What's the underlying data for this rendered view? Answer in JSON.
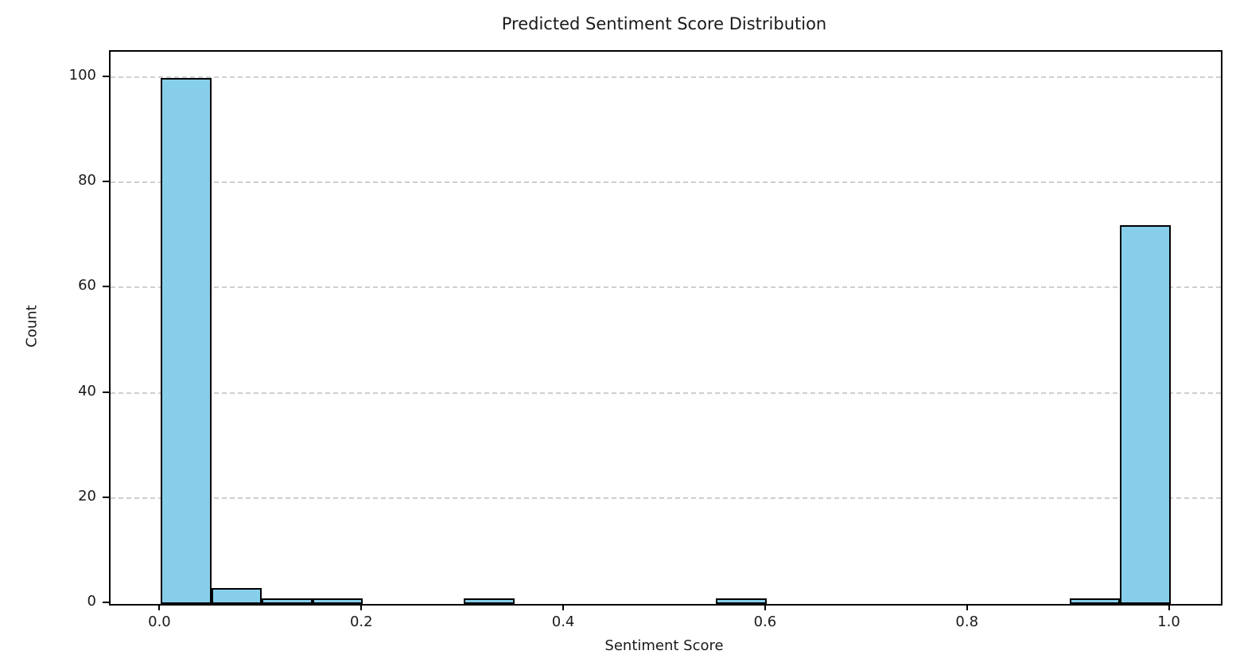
{
  "chart_data": {
    "type": "bar",
    "subtype": "histogram",
    "title": "Predicted Sentiment Score Distribution",
    "xlabel": "Sentiment Score",
    "ylabel": "Count",
    "bin_edges": [
      0.0,
      0.05,
      0.1,
      0.15,
      0.2,
      0.25,
      0.3,
      0.35,
      0.4,
      0.45,
      0.5,
      0.55,
      0.6,
      0.65,
      0.7,
      0.75,
      0.8,
      0.85,
      0.9,
      0.95,
      1.0
    ],
    "counts": [
      100,
      3,
      1,
      1,
      0,
      0,
      1,
      0,
      0,
      0,
      0,
      1,
      0,
      0,
      0,
      0,
      0,
      0,
      1,
      72
    ],
    "x_ticks": [
      {
        "value": 0.0,
        "label": "0.0"
      },
      {
        "value": 0.2,
        "label": "0.2"
      },
      {
        "value": 0.4,
        "label": "0.4"
      },
      {
        "value": 0.6,
        "label": "0.6"
      },
      {
        "value": 0.8,
        "label": "0.8"
      },
      {
        "value": 1.0,
        "label": "1.0"
      }
    ],
    "y_ticks": [
      {
        "value": 0,
        "label": "0"
      },
      {
        "value": 20,
        "label": "20"
      },
      {
        "value": 40,
        "label": "40"
      },
      {
        "value": 60,
        "label": "60"
      },
      {
        "value": 80,
        "label": "80"
      },
      {
        "value": 100,
        "label": "100"
      }
    ],
    "xlim": [
      -0.05,
      1.05
    ],
    "ylim": [
      0,
      105
    ],
    "grid": "horizontal-dashed",
    "legend": "none",
    "colors": {
      "bar_fill": "#87ceeb",
      "bar_edge": "#000000",
      "grid_color": "#cfcfcf",
      "spine_color": "#000000",
      "text_color": "#1a1a1a",
      "background": "#ffffff"
    }
  }
}
